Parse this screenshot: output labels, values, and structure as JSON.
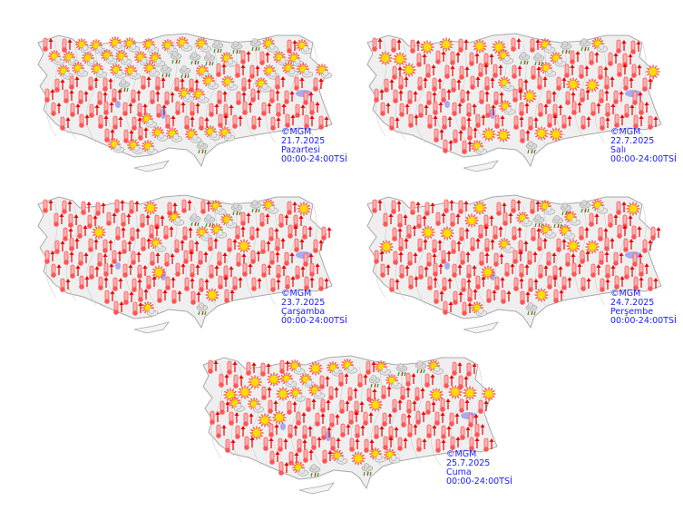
{
  "colors": {
    "land": "#efefef",
    "border": "#a8a8a8",
    "lake": "#a9a9ee",
    "label": "#1a1aff",
    "hot": "#ff5555",
    "sun": "#ffdd00"
  },
  "legend_icons": {
    "h": "hot-thermometer-icon",
    "s": "sunny-icon",
    "p": "partly-cloudy-icon",
    "r": "thunder-rain-icon"
  },
  "maps": [
    {
      "copyright": "©MGM",
      "date": "21.7.2025",
      "day": "Pazartesi",
      "time": "00:00-24:00TSİ",
      "icons": "hhpppppppprrrphpppppppprrrphhpppppppprrphhhpppphhhhrhhhhpphphhhhhhhhhhhpphhhhhhhhhhhhhhhhhhhhhhhhhhhphhhhhhhhhhh"
    },
    {
      "copyright": "©MGM",
      "date": "22.7.2025",
      "day": "Salı",
      "time": "00:00-24:00TSİ",
      "icons": "hhhsshsshhprrphhsshhhhhprrphhhhhshhhhhhhphhhhhshhhhhhhphhhsshhhhhhhhhhhhshhhhhhhhhhhhhphhhhhhhhhhhhhhhhhhhhhhhh"
    },
    {
      "copyright": "©MGM",
      "date": "23.7.2025",
      "day": "Çarşamba",
      "time": "00:00-24:00TSİ",
      "icons": "hhhhhhshhhprrphshhhhhhhprrphhhhhhshhhhhpphhhhhhhhhhhhphhhhshhhhhhhhhhhhhhhhhhhhhhhhhhshhhhhhhhhhhhhhhhhhhhhhhhh"
    },
    {
      "copyright": "©MGM",
      "date": "24.7.2025",
      "day": "Perşembe",
      "time": "00:00-24:00TSİ",
      "icons": "hhhhhhshhhprrphshhhhhshhprrphhhhhsshhhhhpphhhhhshhhhhhphhhsshhhhhhhhhhhhhhhhhhhhhhhhhshhhhhhhhhhhhhhhhhhhhhhhhh"
    },
    {
      "copyright": "©MGM",
      "date": "25.7.2025",
      "day": "Cuma",
      "time": "00:00-24:00TSİ",
      "icons": "hhhhhpspphprrphhhhsspphhhrphhhhsshspphhhhhhsssshpphhhhhhshhhhhhhhhsshhhhhhhhhhhhhshhhhhhhhhhhhhhhhhhhhhhhhhhhh"
    }
  ]
}
